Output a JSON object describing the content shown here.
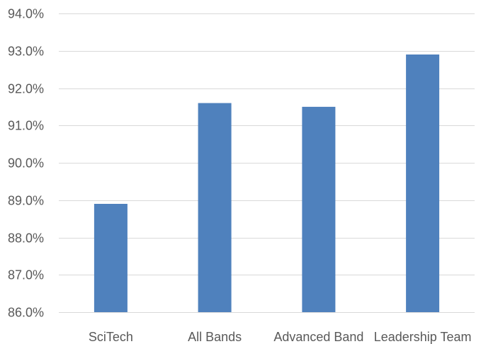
{
  "chart_data": {
    "type": "bar",
    "categories": [
      "SciTech",
      "All Bands",
      "Advanced Band",
      "Leadership Team"
    ],
    "values": [
      88.9,
      91.6,
      91.5,
      92.9
    ],
    "ylim": [
      86.0,
      94.0
    ],
    "y_ticks": [
      "86.0%",
      "87.0%",
      "88.0%",
      "89.0%",
      "90.0%",
      "91.0%",
      "92.0%",
      "93.0%",
      "94.0%"
    ],
    "y_tick_values": [
      86,
      87,
      88,
      89,
      90,
      91,
      92,
      93,
      94
    ],
    "title": "",
    "xlabel": "",
    "ylabel": "",
    "grid": true,
    "legend": "none",
    "colors": {
      "bar": "#4f81bd",
      "grid": "#d9d9d9",
      "text": "#595959"
    }
  }
}
